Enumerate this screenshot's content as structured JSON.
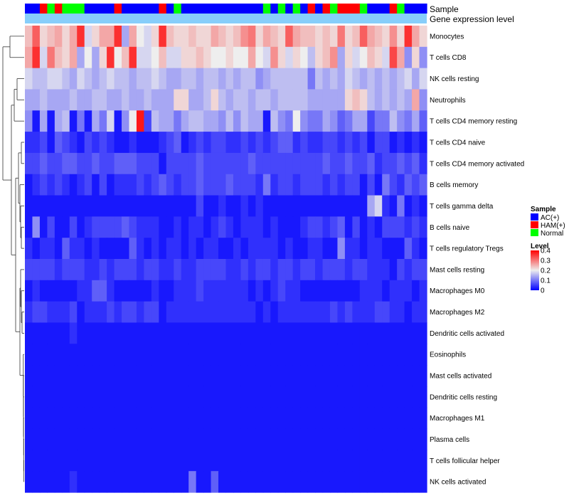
{
  "chart_data": {
    "type": "heatmap",
    "annotation_labels": {
      "sample": "Sample",
      "expression": "Gene expression level"
    },
    "row_labels": [
      "Monocytes",
      "T cells CD8",
      "NK cells resting",
      "Neutrophils",
      "T cells CD4 memory resting",
      "T cells CD4 naive",
      "T cells CD4 memory activated",
      "B cells memory",
      "T cells gamma delta",
      "B cells naive",
      "T cells regulatory  Tregs",
      "Mast cells resting",
      "Macrophages M0",
      "Macrophages M2",
      "Dendritic cells activated",
      "Eosinophils",
      "Mast cells activated",
      "Dendritic cells resting",
      "Macrophages M1",
      "Plasma cells",
      "T cells follicular helper",
      "NK cells activated"
    ],
    "sample_groups": [
      "AC",
      "AC",
      "HAM",
      "Normal",
      "HAM",
      "Normal",
      "Normal",
      "Normal",
      "AC",
      "AC",
      "AC",
      "AC",
      "HAM",
      "AC",
      "AC",
      "AC",
      "AC",
      "AC",
      "HAM",
      "AC",
      "Normal",
      "AC",
      "AC",
      "AC",
      "AC",
      "AC",
      "AC",
      "AC",
      "AC",
      "AC",
      "AC",
      "AC",
      "Normal",
      "AC",
      "Normal",
      "AC",
      "Normal",
      "AC",
      "HAM",
      "AC",
      "HAM",
      "Normal",
      "HAM",
      "HAM",
      "HAM",
      "Normal",
      "AC",
      "AC",
      "AC",
      "HAM",
      "Normal",
      "AC",
      "AC",
      "AC"
    ],
    "expression_level": "uniform",
    "values": [
      [
        0.24,
        0.32,
        0.22,
        0.24,
        0.26,
        0.22,
        0.26,
        0.36,
        0.18,
        0.22,
        0.26,
        0.26,
        0.36,
        0.14,
        0.26,
        0.2,
        0.18,
        0.22,
        0.36,
        0.24,
        0.22,
        0.22,
        0.24,
        0.22,
        0.22,
        0.26,
        0.24,
        0.22,
        0.24,
        0.28,
        0.3,
        0.22,
        0.26,
        0.24,
        0.22,
        0.32,
        0.26,
        0.24,
        0.24,
        0.22,
        0.24,
        0.22,
        0.3,
        0.22,
        0.24,
        0.32,
        0.26,
        0.24,
        0.22,
        0.28,
        0.22,
        0.36,
        0.26,
        0.22
      ],
      [
        0.26,
        0.36,
        0.18,
        0.3,
        0.24,
        0.22,
        0.26,
        0.14,
        0.2,
        0.14,
        0.22,
        0.36,
        0.2,
        0.24,
        0.36,
        0.18,
        0.18,
        0.2,
        0.24,
        0.18,
        0.18,
        0.22,
        0.22,
        0.24,
        0.22,
        0.2,
        0.2,
        0.22,
        0.2,
        0.2,
        0.26,
        0.2,
        0.18,
        0.28,
        0.22,
        0.18,
        0.22,
        0.2,
        0.16,
        0.22,
        0.24,
        0.28,
        0.14,
        0.22,
        0.18,
        0.2,
        0.24,
        0.22,
        0.18,
        0.34,
        0.26,
        0.12,
        0.22,
        0.12
      ],
      [
        0.18,
        0.16,
        0.16,
        0.18,
        0.18,
        0.16,
        0.14,
        0.18,
        0.16,
        0.14,
        0.16,
        0.18,
        0.16,
        0.16,
        0.14,
        0.16,
        0.16,
        0.18,
        0.16,
        0.14,
        0.14,
        0.16,
        0.16,
        0.14,
        0.16,
        0.16,
        0.14,
        0.16,
        0.14,
        0.16,
        0.16,
        0.12,
        0.14,
        0.16,
        0.16,
        0.16,
        0.16,
        0.16,
        0.1,
        0.16,
        0.14,
        0.16,
        0.14,
        0.18,
        0.16,
        0.14,
        0.16,
        0.14,
        0.16,
        0.14,
        0.16,
        0.18,
        0.14,
        0.18
      ],
      [
        0.14,
        0.14,
        0.16,
        0.14,
        0.14,
        0.14,
        0.16,
        0.14,
        0.14,
        0.16,
        0.16,
        0.14,
        0.14,
        0.16,
        0.14,
        0.14,
        0.16,
        0.14,
        0.14,
        0.14,
        0.22,
        0.22,
        0.14,
        0.14,
        0.16,
        0.22,
        0.16,
        0.14,
        0.16,
        0.16,
        0.14,
        0.16,
        0.16,
        0.14,
        0.16,
        0.16,
        0.16,
        0.16,
        0.14,
        0.14,
        0.14,
        0.14,
        0.14,
        0.22,
        0.24,
        0.22,
        0.16,
        0.14,
        0.16,
        0.14,
        0.16,
        0.14,
        0.26,
        0.12
      ],
      [
        0.12,
        0.02,
        0.14,
        0.02,
        0.14,
        0.16,
        0.02,
        0.1,
        0.02,
        0.14,
        0.1,
        0.18,
        0.02,
        0.12,
        0.2,
        0.38,
        0.06,
        0.16,
        0.14,
        0.14,
        0.1,
        0.14,
        0.16,
        0.16,
        0.14,
        0.14,
        0.12,
        0.16,
        0.12,
        0.16,
        0.14,
        0.14,
        0.02,
        0.16,
        0.12,
        0.1,
        0.2,
        0.12,
        0.1,
        0.1,
        0.14,
        0.12,
        0.08,
        0.1,
        0.14,
        0.14,
        0.06,
        0.1,
        0.1,
        0.16,
        0.12,
        0.1,
        0.14,
        0.08
      ],
      [
        0.04,
        0.04,
        0.06,
        0.02,
        0.08,
        0.06,
        0.04,
        0.02,
        0.06,
        0.04,
        0.06,
        0.04,
        0.02,
        0.02,
        0.04,
        0.02,
        0.02,
        0.02,
        0.04,
        0.06,
        0.08,
        0.02,
        0.04,
        0.06,
        0.04,
        0.06,
        0.06,
        0.04,
        0.04,
        0.06,
        0.04,
        0.06,
        0.04,
        0.06,
        0.08,
        0.08,
        0.04,
        0.06,
        0.04,
        0.04,
        0.06,
        0.06,
        0.04,
        0.06,
        0.04,
        0.06,
        0.02,
        0.06,
        0.06,
        0.02,
        0.04,
        0.02,
        0.04,
        0.02
      ],
      [
        0.06,
        0.06,
        0.08,
        0.06,
        0.06,
        0.08,
        0.08,
        0.06,
        0.06,
        0.08,
        0.06,
        0.06,
        0.08,
        0.08,
        0.08,
        0.06,
        0.06,
        0.06,
        0.02,
        0.06,
        0.06,
        0.06,
        0.06,
        0.08,
        0.06,
        0.06,
        0.06,
        0.06,
        0.06,
        0.06,
        0.08,
        0.06,
        0.06,
        0.06,
        0.06,
        0.06,
        0.06,
        0.06,
        0.06,
        0.06,
        0.08,
        0.06,
        0.06,
        0.08,
        0.06,
        0.06,
        0.08,
        0.04,
        0.06,
        0.06,
        0.08,
        0.06,
        0.08,
        0.04
      ],
      [
        0.02,
        0.04,
        0.06,
        0.04,
        0.06,
        0.04,
        0.02,
        0.04,
        0.06,
        0.02,
        0.06,
        0.02,
        0.04,
        0.04,
        0.04,
        0.06,
        0.04,
        0.06,
        0.08,
        0.06,
        0.04,
        0.06,
        0.06,
        0.08,
        0.06,
        0.06,
        0.06,
        0.08,
        0.06,
        0.06,
        0.06,
        0.04,
        0.1,
        0.04,
        0.06,
        0.06,
        0.04,
        0.06,
        0.06,
        0.06,
        0.04,
        0.06,
        0.04,
        0.06,
        0.06,
        0.02,
        0.06,
        0.02,
        0.1,
        0.06,
        0.04,
        0.08,
        0.06,
        0.08
      ],
      [
        0.02,
        0.02,
        0.02,
        0.02,
        0.02,
        0.02,
        0.02,
        0.02,
        0.02,
        0.02,
        0.02,
        0.02,
        0.02,
        0.02,
        0.02,
        0.02,
        0.02,
        0.02,
        0.02,
        0.02,
        0.02,
        0.02,
        0.02,
        0.06,
        0.02,
        0.02,
        0.04,
        0.02,
        0.02,
        0.04,
        0.02,
        0.04,
        0.02,
        0.02,
        0.02,
        0.02,
        0.02,
        0.02,
        0.02,
        0.02,
        0.02,
        0.02,
        0.02,
        0.02,
        0.02,
        0.02,
        0.14,
        0.18,
        0.04,
        0.02,
        0.1,
        0.02,
        0.04,
        0.02
      ],
      [
        0.02,
        0.12,
        0.02,
        0.06,
        0.02,
        0.02,
        0.06,
        0.02,
        0.04,
        0.06,
        0.06,
        0.06,
        0.06,
        0.08,
        0.06,
        0.04,
        0.04,
        0.04,
        0.02,
        0.02,
        0.04,
        0.02,
        0.04,
        0.04,
        0.02,
        0.04,
        0.06,
        0.04,
        0.02,
        0.04,
        0.04,
        0.04,
        0.02,
        0.04,
        0.02,
        0.02,
        0.02,
        0.04,
        0.06,
        0.06,
        0.04,
        0.06,
        0.08,
        0.02,
        0.06,
        0.02,
        0.04,
        0.02,
        0.06,
        0.06,
        0.06,
        0.04,
        0.06,
        0.04
      ],
      [
        0.04,
        0.02,
        0.04,
        0.04,
        0.02,
        0.08,
        0.04,
        0.04,
        0.02,
        0.04,
        0.02,
        0.02,
        0.02,
        0.02,
        0.08,
        0.04,
        0.02,
        0.04,
        0.02,
        0.04,
        0.04,
        0.02,
        0.04,
        0.02,
        0.04,
        0.04,
        0.02,
        0.02,
        0.04,
        0.02,
        0.04,
        0.04,
        0.04,
        0.04,
        0.02,
        0.04,
        0.02,
        0.02,
        0.04,
        0.04,
        0.02,
        0.02,
        0.12,
        0.04,
        0.04,
        0.02,
        0.04,
        0.04,
        0.02,
        0.02,
        0.02,
        0.08,
        0.04,
        0.02
      ],
      [
        0.06,
        0.06,
        0.06,
        0.06,
        0.04,
        0.06,
        0.06,
        0.06,
        0.04,
        0.04,
        0.06,
        0.04,
        0.06,
        0.06,
        0.06,
        0.04,
        0.06,
        0.06,
        0.04,
        0.04,
        0.06,
        0.04,
        0.04,
        0.06,
        0.06,
        0.06,
        0.06,
        0.04,
        0.04,
        0.06,
        0.04,
        0.06,
        0.06,
        0.04,
        0.06,
        0.06,
        0.04,
        0.06,
        0.06,
        0.04,
        0.06,
        0.06,
        0.06,
        0.04,
        0.06,
        0.06,
        0.04,
        0.04,
        0.04,
        0.02,
        0.06,
        0.04,
        0.06,
        0.06
      ],
      [
        0.02,
        0.04,
        0.02,
        0.02,
        0.02,
        0.02,
        0.02,
        0.04,
        0.04,
        0.08,
        0.08,
        0.04,
        0.02,
        0.02,
        0.02,
        0.02,
        0.02,
        0.04,
        0.02,
        0.02,
        0.04,
        0.04,
        0.04,
        0.06,
        0.04,
        0.04,
        0.04,
        0.04,
        0.04,
        0.04,
        0.02,
        0.04,
        0.02,
        0.04,
        0.06,
        0.04,
        0.04,
        0.02,
        0.02,
        0.02,
        0.02,
        0.02,
        0.02,
        0.02,
        0.02,
        0.04,
        0.04,
        0.04,
        0.02,
        0.04,
        0.04,
        0.04,
        0.02,
        0.04
      ],
      [
        0.04,
        0.06,
        0.06,
        0.04,
        0.04,
        0.04,
        0.06,
        0.02,
        0.04,
        0.04,
        0.04,
        0.06,
        0.04,
        0.06,
        0.06,
        0.04,
        0.06,
        0.06,
        0.02,
        0.04,
        0.04,
        0.04,
        0.04,
        0.04,
        0.04,
        0.04,
        0.04,
        0.04,
        0.04,
        0.04,
        0.04,
        0.02,
        0.04,
        0.02,
        0.04,
        0.04,
        0.04,
        0.04,
        0.04,
        0.04,
        0.04,
        0.06,
        0.04,
        0.06,
        0.04,
        0.04,
        0.04,
        0.06,
        0.06,
        0.04,
        0.04,
        0.02,
        0.04,
        0.04
      ],
      [
        0.02,
        0.02,
        0.02,
        0.02,
        0.02,
        0.02,
        0.04,
        0.02,
        0.02,
        0.02,
        0.02,
        0.02,
        0.02,
        0.02,
        0.02,
        0.02,
        0.02,
        0.02,
        0.02,
        0.02,
        0.02,
        0.02,
        0.02,
        0.02,
        0.02,
        0.02,
        0.02,
        0.02,
        0.02,
        0.02,
        0.02,
        0.02,
        0.02,
        0.02,
        0.02,
        0.02,
        0.02,
        0.02,
        0.02,
        0.02,
        0.02,
        0.02,
        0.02,
        0.02,
        0.02,
        0.02,
        0.02,
        0.02,
        0.02,
        0.02,
        0.02,
        0.02,
        0.02,
        0.02
      ],
      [
        0.02,
        0.02,
        0.02,
        0.02,
        0.02,
        0.02,
        0.02,
        0.02,
        0.02,
        0.02,
        0.02,
        0.02,
        0.02,
        0.02,
        0.02,
        0.02,
        0.02,
        0.02,
        0.02,
        0.02,
        0.02,
        0.02,
        0.02,
        0.02,
        0.02,
        0.02,
        0.02,
        0.02,
        0.02,
        0.02,
        0.02,
        0.02,
        0.02,
        0.02,
        0.02,
        0.02,
        0.02,
        0.02,
        0.02,
        0.02,
        0.02,
        0.02,
        0.02,
        0.02,
        0.02,
        0.02,
        0.02,
        0.02,
        0.02,
        0.02,
        0.02,
        0.02,
        0.02,
        0.02
      ],
      [
        0.02,
        0.02,
        0.02,
        0.02,
        0.02,
        0.02,
        0.02,
        0.02,
        0.02,
        0.02,
        0.02,
        0.02,
        0.02,
        0.02,
        0.02,
        0.02,
        0.02,
        0.02,
        0.02,
        0.02,
        0.02,
        0.02,
        0.02,
        0.02,
        0.02,
        0.02,
        0.02,
        0.02,
        0.02,
        0.02,
        0.02,
        0.02,
        0.02,
        0.02,
        0.02,
        0.02,
        0.02,
        0.02,
        0.02,
        0.02,
        0.02,
        0.02,
        0.02,
        0.02,
        0.02,
        0.02,
        0.02,
        0.02,
        0.02,
        0.02,
        0.02,
        0.02,
        0.02,
        0.02
      ],
      [
        0.02,
        0.02,
        0.02,
        0.02,
        0.02,
        0.02,
        0.02,
        0.02,
        0.02,
        0.02,
        0.02,
        0.02,
        0.02,
        0.02,
        0.02,
        0.02,
        0.02,
        0.02,
        0.02,
        0.02,
        0.02,
        0.02,
        0.02,
        0.02,
        0.02,
        0.02,
        0.02,
        0.02,
        0.02,
        0.02,
        0.02,
        0.02,
        0.02,
        0.02,
        0.02,
        0.02,
        0.02,
        0.02,
        0.02,
        0.02,
        0.02,
        0.02,
        0.02,
        0.02,
        0.02,
        0.02,
        0.02,
        0.02,
        0.02,
        0.02,
        0.02,
        0.02,
        0.02,
        0.02
      ],
      [
        0.02,
        0.02,
        0.02,
        0.02,
        0.02,
        0.02,
        0.02,
        0.02,
        0.02,
        0.02,
        0.02,
        0.02,
        0.02,
        0.02,
        0.02,
        0.02,
        0.02,
        0.02,
        0.02,
        0.02,
        0.02,
        0.02,
        0.02,
        0.02,
        0.02,
        0.02,
        0.02,
        0.02,
        0.02,
        0.02,
        0.02,
        0.02,
        0.02,
        0.02,
        0.02,
        0.02,
        0.02,
        0.02,
        0.02,
        0.02,
        0.02,
        0.02,
        0.02,
        0.02,
        0.02,
        0.02,
        0.02,
        0.02,
        0.02,
        0.02,
        0.02,
        0.02,
        0.02,
        0.02
      ],
      [
        0.02,
        0.02,
        0.02,
        0.02,
        0.02,
        0.02,
        0.02,
        0.02,
        0.02,
        0.02,
        0.02,
        0.02,
        0.02,
        0.02,
        0.02,
        0.02,
        0.02,
        0.02,
        0.02,
        0.02,
        0.02,
        0.02,
        0.02,
        0.02,
        0.02,
        0.02,
        0.02,
        0.02,
        0.02,
        0.02,
        0.02,
        0.02,
        0.02,
        0.02,
        0.02,
        0.02,
        0.02,
        0.02,
        0.02,
        0.02,
        0.02,
        0.02,
        0.02,
        0.02,
        0.02,
        0.02,
        0.02,
        0.02,
        0.02,
        0.02,
        0.02,
        0.02,
        0.02,
        0.02
      ],
      [
        0.02,
        0.02,
        0.02,
        0.02,
        0.02,
        0.02,
        0.02,
        0.02,
        0.02,
        0.02,
        0.02,
        0.02,
        0.02,
        0.02,
        0.02,
        0.02,
        0.02,
        0.02,
        0.02,
        0.02,
        0.02,
        0.02,
        0.02,
        0.02,
        0.02,
        0.02,
        0.02,
        0.02,
        0.02,
        0.02,
        0.02,
        0.02,
        0.02,
        0.02,
        0.02,
        0.02,
        0.02,
        0.02,
        0.02,
        0.02,
        0.02,
        0.02,
        0.02,
        0.02,
        0.02,
        0.02,
        0.02,
        0.02,
        0.02,
        0.02,
        0.02,
        0.02,
        0.02,
        0.02
      ],
      [
        0.02,
        0.02,
        0.02,
        0.02,
        0.02,
        0.02,
        0.04,
        0.02,
        0.02,
        0.02,
        0.02,
        0.02,
        0.02,
        0.02,
        0.02,
        0.02,
        0.02,
        0.02,
        0.02,
        0.02,
        0.02,
        0.02,
        0.1,
        0.02,
        0.02,
        0.08,
        0.02,
        0.02,
        0.02,
        0.02,
        0.02,
        0.02,
        0.02,
        0.02,
        0.02,
        0.02,
        0.02,
        0.02,
        0.02,
        0.02,
        0.02,
        0.02,
        0.02,
        0.02,
        0.02,
        0.02,
        0.02,
        0.02,
        0.02,
        0.02,
        0.02,
        0.02,
        0.02,
        0.02
      ]
    ],
    "legend": {
      "sample_title": "Sample",
      "sample_entries": [
        {
          "key": "AC",
          "label": "AC(+)",
          "color": "#0000ff"
        },
        {
          "key": "HAM",
          "label": "HAM(+)",
          "color": "#ff0000"
        },
        {
          "key": "Normal",
          "label": "Normal",
          "color": "#00ff00"
        }
      ],
      "level_title": "Level",
      "level_ticks": [
        "0.4",
        "0.3",
        "0.2",
        "0.1",
        "0"
      ],
      "level_tick_values": [
        0.4,
        0.3,
        0.2,
        0.1,
        0
      ],
      "level_range": [
        0,
        0.4
      ],
      "placement": "right"
    },
    "colors": {
      "low": "#0000ff",
      "mid": "#eeeeee",
      "high": "#ff0000",
      "expression_bar": "#87cefa"
    }
  }
}
